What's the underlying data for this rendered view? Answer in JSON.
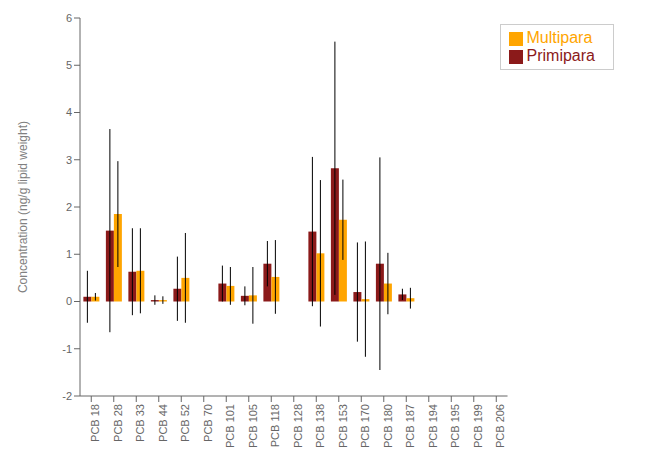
{
  "chart_data": {
    "type": "bar",
    "categories": [
      "PCB 18",
      "PCB 28",
      "PCB 33",
      "PCB 44",
      "PCB 52",
      "PCB 70",
      "PCB 101",
      "PCB 105",
      "PCB 118",
      "PCB 128",
      "PCB 138",
      "PCB 153",
      "PCB 170",
      "PCB 180",
      "PCB 187",
      "PCB 194",
      "PCB 195",
      "PCB 199",
      "PCB 206"
    ],
    "series": [
      {
        "name": "Primipara",
        "color": "#8B1A1A",
        "values": [
          0.1,
          1.5,
          0.63,
          0.03,
          0.27,
          0.0,
          0.38,
          0.12,
          0.8,
          0.0,
          1.48,
          2.82,
          0.2,
          0.8,
          0.15,
          0.0,
          0.0,
          0.0,
          0.0
        ],
        "errors": [
          0.55,
          2.15,
          0.92,
          0.1,
          0.68,
          0.0,
          0.38,
          0.2,
          0.48,
          0.0,
          1.58,
          2.68,
          1.05,
          2.25,
          0.12,
          0.0,
          0.0,
          0.0,
          0.0
        ]
      },
      {
        "name": "Multipara",
        "color": "#FFA500",
        "values": [
          0.1,
          1.85,
          0.65,
          0.03,
          0.5,
          0.0,
          0.33,
          0.13,
          0.52,
          0.0,
          1.02,
          1.73,
          0.05,
          0.38,
          0.07,
          0.0,
          0.0,
          0.0,
          0.0
        ],
        "errors": [
          0.08,
          1.12,
          0.9,
          0.08,
          0.95,
          0.0,
          0.4,
          0.6,
          0.78,
          0.0,
          1.55,
          0.85,
          1.22,
          0.65,
          0.22,
          0.0,
          0.0,
          0.0,
          0.0
        ]
      }
    ],
    "ylabel": "Concentration (ng/g lipid weight)",
    "ylim": [
      -2,
      6
    ],
    "yticks": [
      -2,
      -1,
      0,
      1,
      2,
      3,
      4,
      5,
      6
    ],
    "legend": "upper right",
    "grid": false
  }
}
